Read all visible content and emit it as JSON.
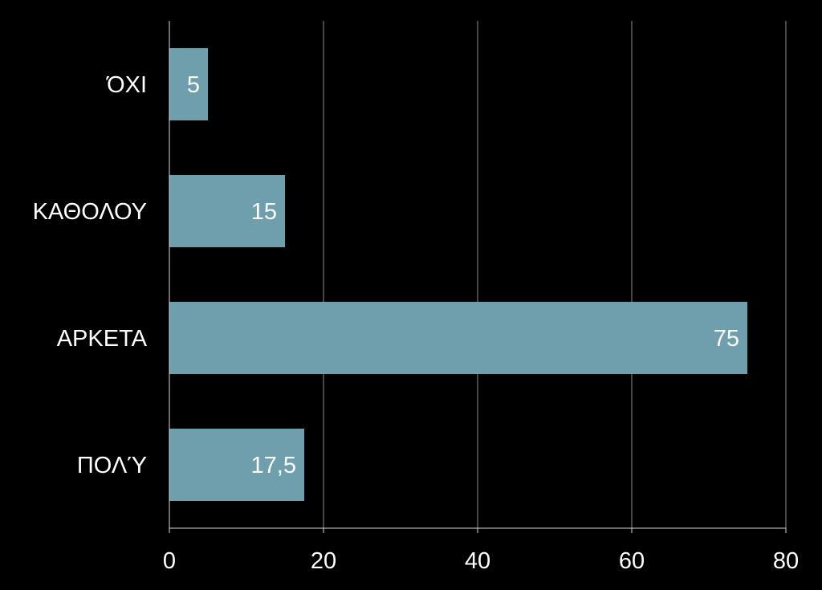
{
  "chart_data": {
    "type": "bar",
    "orientation": "horizontal",
    "categories": [
      "ΌΧΙ",
      "ΚΑΘΟΛΟΥ",
      "ΑΡΚΕΤΑ",
      "ΠΟΛΎ"
    ],
    "values": [
      5,
      15,
      75,
      17.5
    ],
    "data_labels": [
      "5",
      "15",
      "75",
      "17,5"
    ],
    "title": "",
    "xlabel": "",
    "ylabel": "",
    "xlim": [
      0,
      80
    ],
    "x_ticks": [
      0,
      20,
      40,
      60,
      80
    ],
    "x_tick_labels": [
      "0",
      "20",
      "40",
      "60",
      "80"
    ],
    "grid": true,
    "legend": "none"
  },
  "colors": {
    "background": "#000000",
    "bar": "#6f9fad",
    "text": "#ffffff",
    "grid": "#8c8c8c",
    "axis": "#d9d9d9"
  }
}
